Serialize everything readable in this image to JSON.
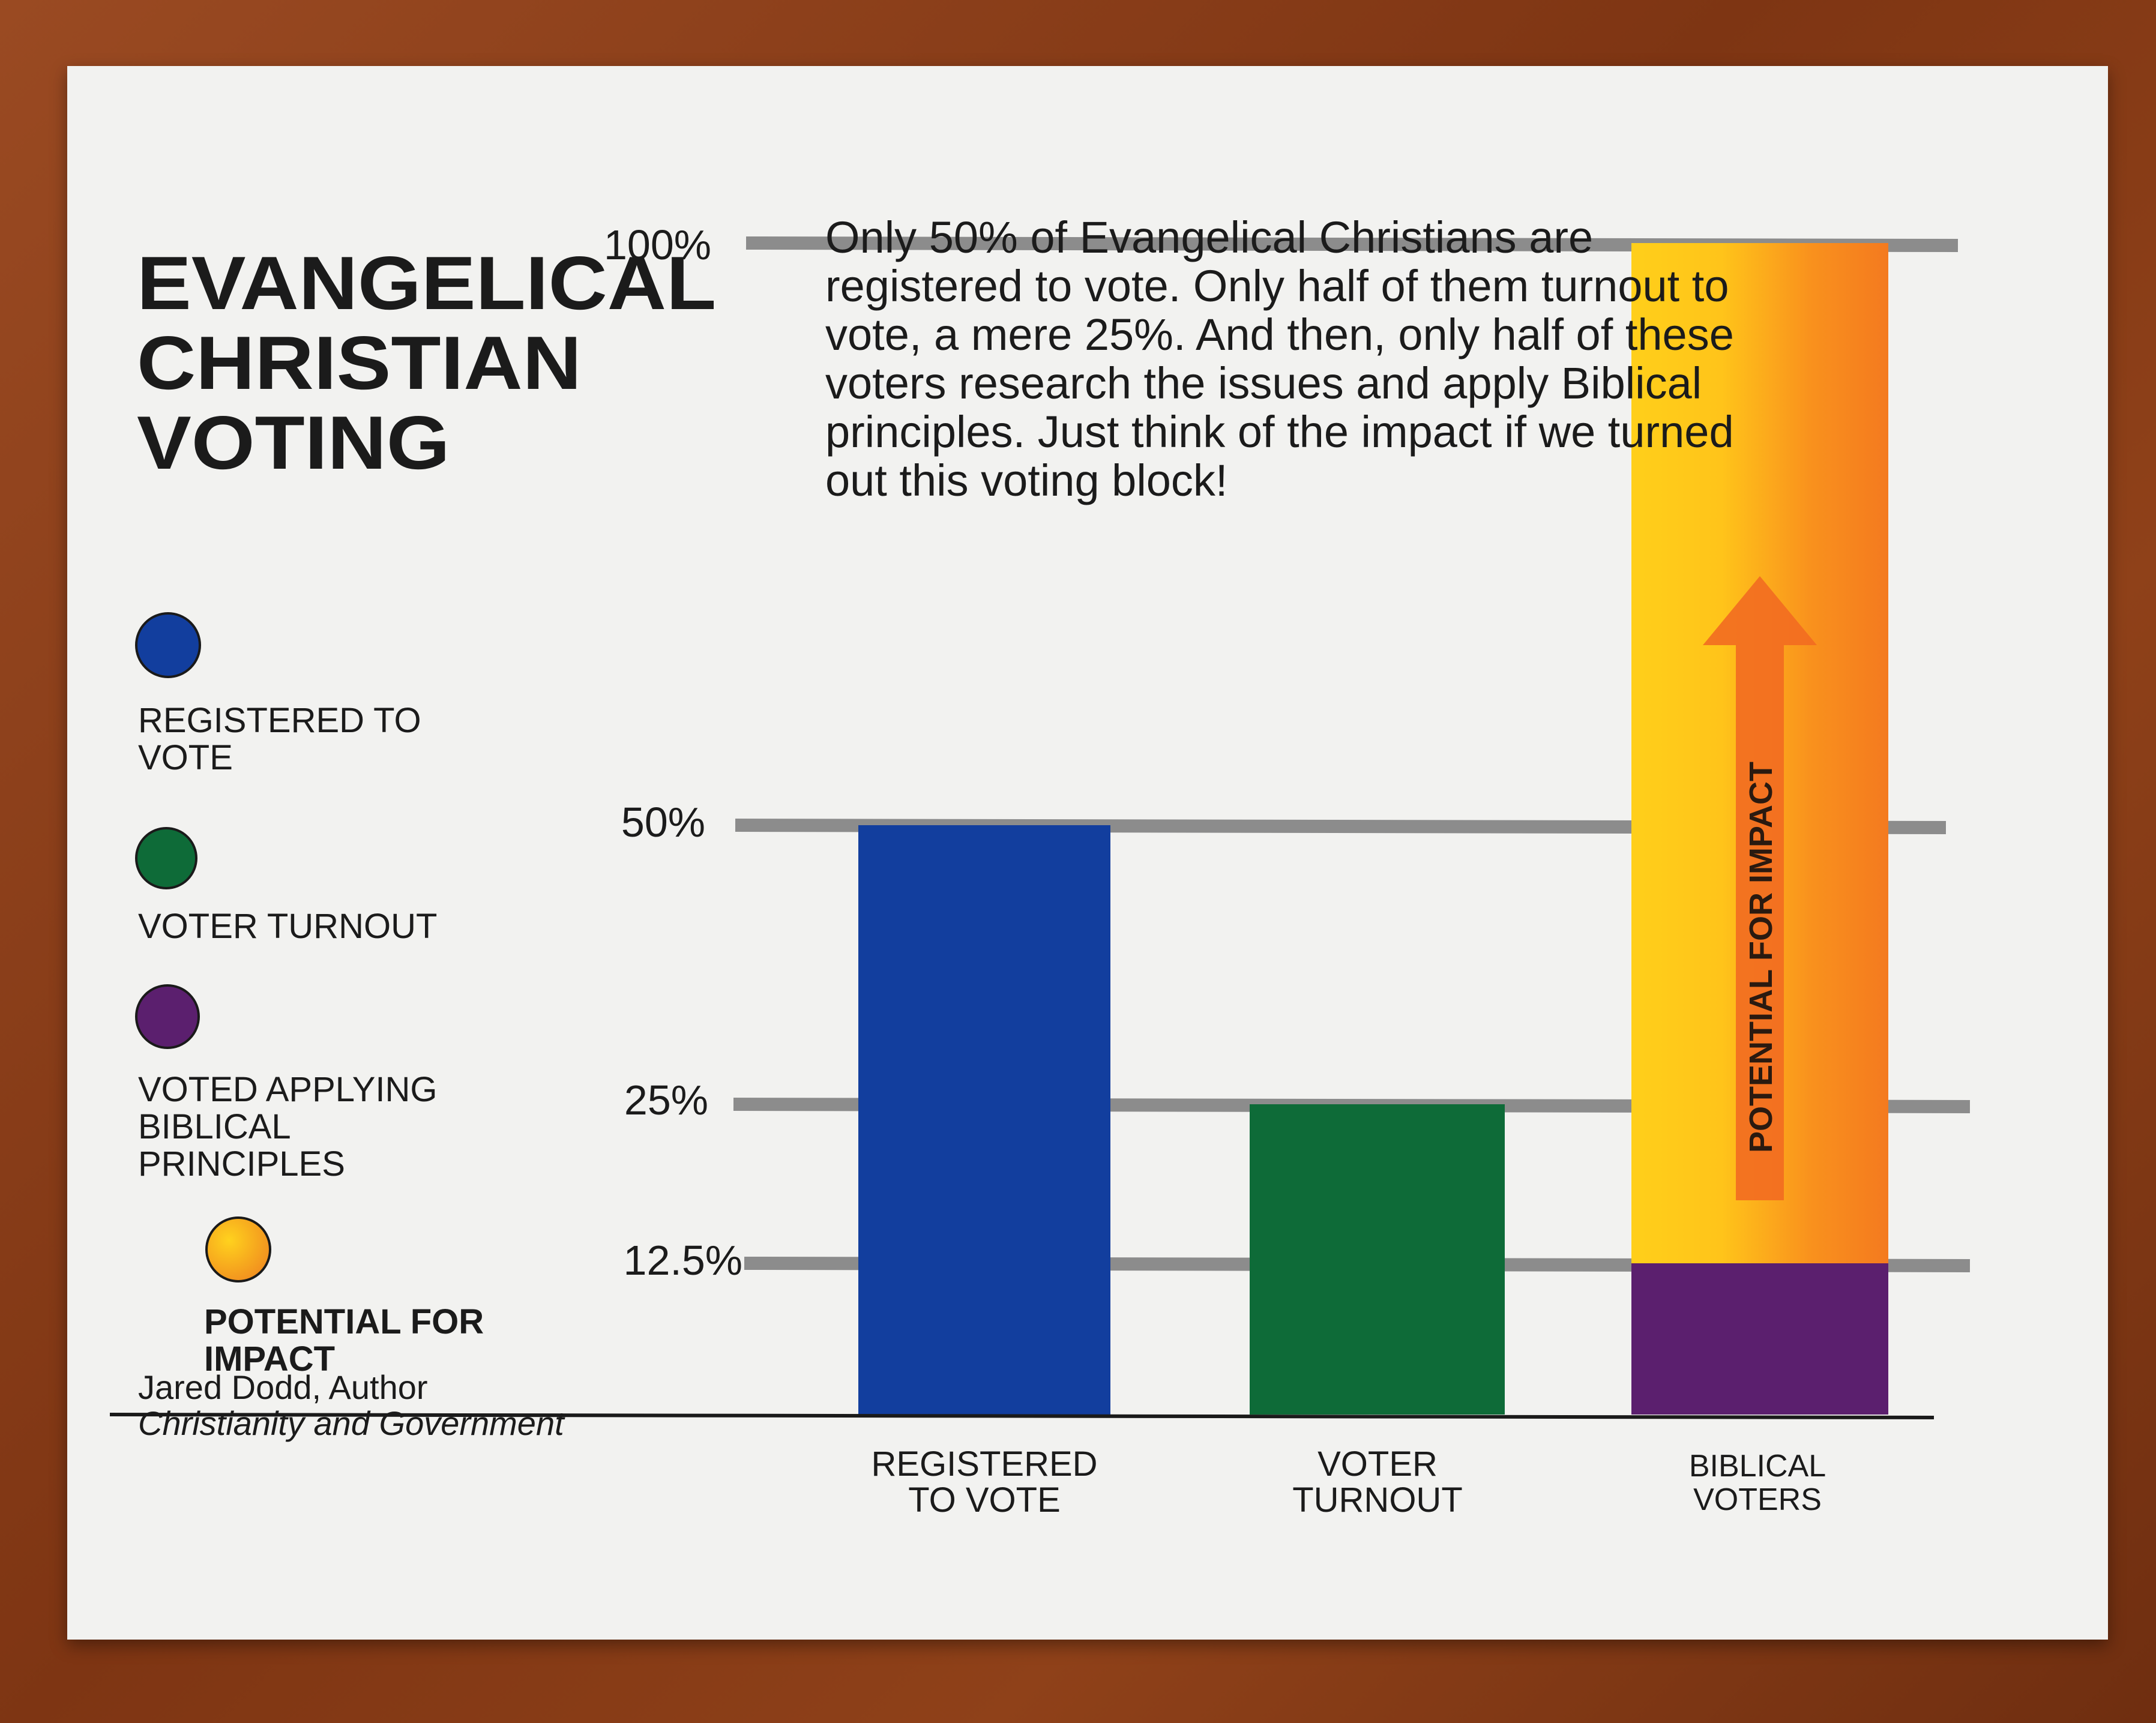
{
  "title": {
    "line1": "EVANGELICAL",
    "line2": "CHRISTIAN",
    "line3": "VOTING"
  },
  "description": {
    "line1": "Only 50% of Evangelical Christians are",
    "line2": "registered to vote.  Only half of them turnout to",
    "line3": "vote, a mere 25%.  And then, only half of these",
    "line4": "voters research the issues and apply Biblical",
    "line5": "principles. Just think of the impact if we turned",
    "line6": "out this voting block!"
  },
  "legend": [
    {
      "color": "#123e9e",
      "line1": "REGISTERED TO",
      "line2": "VOTE"
    },
    {
      "color": "#0e6b38",
      "line1": "VOTER TURNOUT",
      "line2": ""
    },
    {
      "color": "#5b1f6e",
      "line1": "VOTED APPLYING",
      "line2": "BIBLICAL",
      "line3": "PRINCIPLES"
    },
    {
      "color": "#f2a21a",
      "line1": "POTENTIAL FOR",
      "line2": "IMPACT"
    }
  ],
  "credit": {
    "author": "Jared Dodd, Author",
    "book": "Christianity and Government"
  },
  "chart_data": {
    "type": "bar",
    "y_ticks": [
      {
        "value": 100,
        "label": "100%"
      },
      {
        "value": 50,
        "label": "50%"
      },
      {
        "value": 25,
        "label": "25%"
      },
      {
        "value": 12.5,
        "label": "12.5%"
      }
    ],
    "ylim": [
      0,
      100
    ],
    "grid": true,
    "categories": [
      {
        "line1": "REGISTERED",
        "line2": "TO VOTE"
      },
      {
        "line1": "VOTER",
        "line2": "TURNOUT"
      },
      {
        "line1": "BIBLICAL",
        "line2": "VOTERS"
      }
    ],
    "series": [
      {
        "name": "REGISTERED TO VOTE",
        "values": [
          50,
          0,
          0
        ],
        "color": "#123e9e"
      },
      {
        "name": "VOTER TURNOUT",
        "values": [
          0,
          25,
          0
        ],
        "color": "#0e6b38"
      },
      {
        "name": "VOTED APPLYING BIBLICAL PRINCIPLES",
        "values": [
          0,
          0,
          12.5
        ],
        "color": "#5b1f6e"
      },
      {
        "name": "POTENTIAL FOR IMPACT",
        "values": [
          0,
          0,
          87.5
        ],
        "color": "#f2a21a"
      }
    ],
    "annotation": "POTENTIAL FOR IMPACT"
  }
}
